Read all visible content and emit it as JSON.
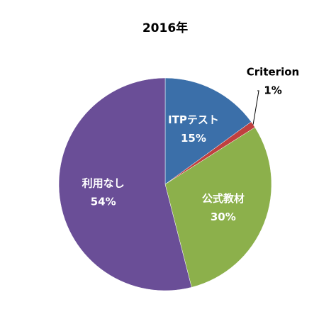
{
  "chart_data": {
    "type": "pie",
    "title": "2016年",
    "categories": [
      "ITPテスト",
      "Criterion",
      "公式教材",
      "利用なし"
    ],
    "values": [
      15,
      1,
      30,
      54
    ],
    "value_labels": [
      "15%",
      "1%",
      "30%",
      "54%"
    ],
    "colors": [
      "#3b6fa9",
      "#c0403f",
      "#8cb04b",
      "#6a4e97"
    ]
  }
}
